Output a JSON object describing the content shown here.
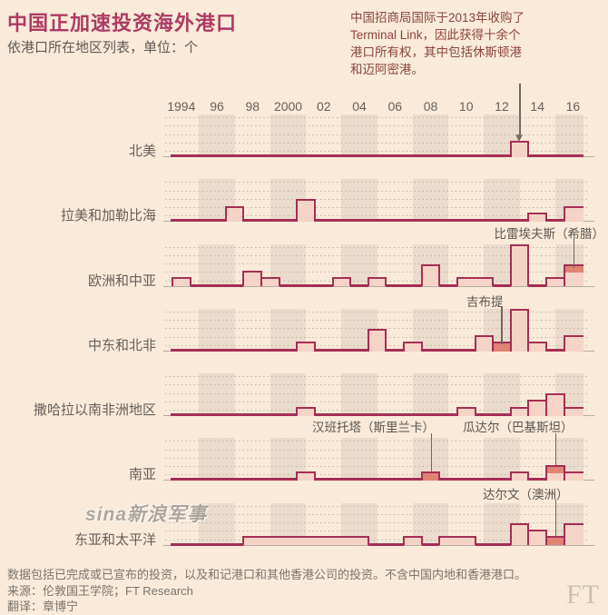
{
  "title": "中国正加速投资海外港口",
  "subtitle": "依港口所在地区列表，单位：个",
  "annotation_note": "中国招商局国际于2013年收购了\nTerminal Link，因此获得十余个\n港口所有权，其中包括休斯顿港\n和迈阿密港。",
  "watermark": "sina新浪军事",
  "ft_logo": "FT",
  "footnote": "数据包括已完成或已宣布的投资，以及和记港口和其他香港公司的投资。不含中国内地和香港港口。",
  "source": "来源：伦敦国王学院；FT Research",
  "translation": "翻译：章博宁",
  "colors": {
    "background": "#f9ead9",
    "line": "#a42e55",
    "bar_fill": "#f5d3c7",
    "bar_highlight": "#e08274",
    "title": "#ad3a64"
  },
  "chart_data": {
    "type": "area",
    "unit": "个",
    "x_start_year": 1994,
    "x_end_year": 2016,
    "x_ticks": [
      {
        "year": 1994,
        "label": "1994"
      },
      {
        "year": 1996,
        "label": "96"
      },
      {
        "year": 1998,
        "label": "98"
      },
      {
        "year": 2000,
        "label": "2000"
      },
      {
        "year": 2002,
        "label": "02"
      },
      {
        "year": 2004,
        "label": "04"
      },
      {
        "year": 2006,
        "label": "06"
      },
      {
        "year": 2008,
        "label": "08"
      },
      {
        "year": 2010,
        "label": "10"
      },
      {
        "year": 2012,
        "label": "12"
      },
      {
        "year": 2014,
        "label": "14"
      },
      {
        "year": 2016,
        "label": "16"
      }
    ],
    "regions": [
      {
        "label": "北美",
        "values": [
          0,
          0,
          0,
          0,
          0,
          0,
          0,
          0,
          0,
          0,
          0,
          0,
          0,
          0,
          0,
          0,
          0,
          0,
          0,
          2,
          0,
          0,
          0
        ],
        "dark_years": {}
      },
      {
        "label": "拉美和加勒比海",
        "values": [
          0,
          0,
          0,
          2,
          0,
          0,
          0,
          3,
          0,
          0,
          0,
          0,
          0,
          0,
          0,
          0,
          0,
          0,
          0,
          0,
          1,
          0,
          2
        ],
        "dark_years": {}
      },
      {
        "label": "欧洲和中亚",
        "values": [
          1,
          0,
          0,
          0,
          2,
          1,
          0,
          0,
          0,
          1,
          0,
          1,
          0,
          0,
          3,
          0,
          1,
          1,
          0,
          6,
          0,
          1,
          3
        ],
        "dark_years": {
          "2016": 1
        }
      },
      {
        "label": "中东和北非",
        "values": [
          0,
          0,
          0,
          0,
          0,
          0,
          0,
          1,
          0,
          0,
          0,
          3,
          0,
          1,
          0,
          0,
          0,
          2,
          1,
          6,
          1,
          0,
          2
        ],
        "dark_years": {
          "2012": 1
        }
      },
      {
        "label": "撒哈拉以南非洲地区",
        "values": [
          0,
          0,
          0,
          0,
          0,
          0,
          0,
          1,
          0,
          0,
          0,
          0,
          0,
          0,
          0,
          0,
          1,
          0,
          0,
          1,
          2,
          3,
          1
        ],
        "dark_years": {}
      },
      {
        "label": "南亚",
        "values": [
          0,
          0,
          0,
          0,
          0,
          0,
          0,
          1,
          0,
          0,
          0,
          0,
          0,
          0,
          1,
          0,
          0,
          0,
          0,
          1,
          0,
          2,
          1
        ],
        "dark_years": {
          "2008": 1,
          "2015": 1
        }
      },
      {
        "label": "东亚和太平洋",
        "values": [
          0,
          0,
          0,
          0,
          1,
          1,
          1,
          1,
          1,
          1,
          1,
          0,
          0,
          1,
          0,
          1,
          1,
          0,
          0,
          3,
          2,
          1,
          3
        ],
        "dark_years": {
          "2015": 1
        }
      }
    ],
    "port_annotations": [
      {
        "label": "比雷埃夫斯（希腊）",
        "region": "欧洲和中亚",
        "year": 2016
      },
      {
        "label": "吉布提",
        "region": "中东和北非",
        "year": 2012
      },
      {
        "label": "汉班托塔（斯里兰卡）",
        "region": "南亚",
        "year": 2008
      },
      {
        "label": "瓜达尔（巴基斯坦）",
        "region": "南亚",
        "year": 2015
      },
      {
        "label": "达尔文（澳洲）",
        "region": "东亚和太平洋",
        "year": 2015
      }
    ]
  }
}
